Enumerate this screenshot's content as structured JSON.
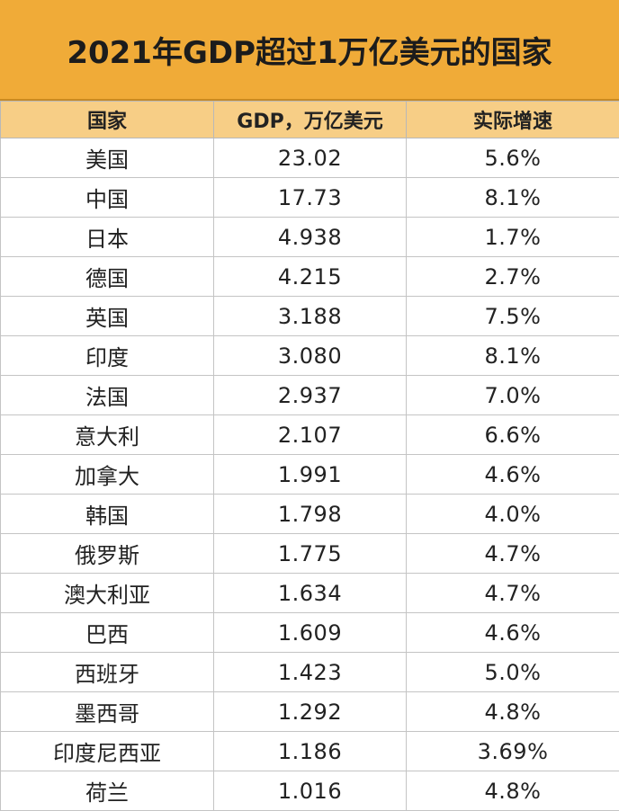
{
  "title": "2021年GDP超过1万亿美元的国家",
  "headers": {
    "country": "国家",
    "gdp": "GDP，万亿美元",
    "growth": "实际增速"
  },
  "rows": [
    {
      "country": "美国",
      "gdp": "23.02",
      "growth": "5.6%"
    },
    {
      "country": "中国",
      "gdp": "17.73",
      "growth": "8.1%"
    },
    {
      "country": "日本",
      "gdp": "4.938",
      "growth": "1.7%"
    },
    {
      "country": "德国",
      "gdp": "4.215",
      "growth": "2.7%"
    },
    {
      "country": "英国",
      "gdp": "3.188",
      "growth": "7.5%"
    },
    {
      "country": "印度",
      "gdp": "3.080",
      "growth": "8.1%"
    },
    {
      "country": "法国",
      "gdp": "2.937",
      "growth": "7.0%"
    },
    {
      "country": "意大利",
      "gdp": "2.107",
      "growth": "6.6%"
    },
    {
      "country": "加拿大",
      "gdp": "1.991",
      "growth": "4.6%"
    },
    {
      "country": "韩国",
      "gdp": "1.798",
      "growth": "4.0%"
    },
    {
      "country": "俄罗斯",
      "gdp": "1.775",
      "growth": "4.7%"
    },
    {
      "country": "澳大利亚",
      "gdp": "1.634",
      "growth": "4.7%"
    },
    {
      "country": "巴西",
      "gdp": "1.609",
      "growth": "4.6%"
    },
    {
      "country": "西班牙",
      "gdp": "1.423",
      "growth": "5.0%"
    },
    {
      "country": "墨西哥",
      "gdp": "1.292",
      "growth": "4.8%"
    },
    {
      "country": "印度尼西亚",
      "gdp": "1.186",
      "growth": "3.69%"
    },
    {
      "country": "荷兰",
      "gdp": "1.016",
      "growth": "4.8%"
    }
  ],
  "colors": {
    "title_background": "#f0ab38",
    "header_background": "#f7ce86",
    "grid_line": "#c4c4c4"
  }
}
